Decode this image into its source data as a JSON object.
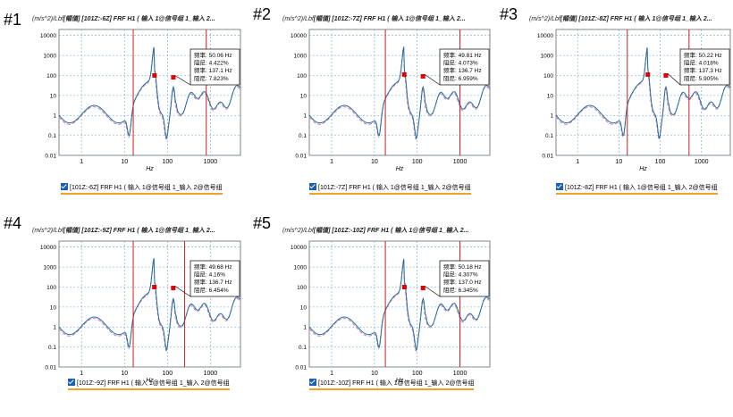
{
  "common": {
    "y_ticks": [
      "10000",
      "1000",
      "100",
      "10",
      "1",
      "0.1",
      "0.01"
    ],
    "x_ticks": [
      "1",
      "10",
      "100",
      "1000"
    ],
    "xlabel": "Hz",
    "colors": {
      "frf": "#1f6f9f",
      "fit": "#d080b0",
      "cursor": "#cc2020",
      "marker": "#e00000",
      "grid": "#66aacc",
      "legend_check": "#1a5fb4",
      "legend_underline": "#f0a030"
    }
  },
  "charts": [
    {
      "label": "#1",
      "title_units": "(m/s^2)/Lbf",
      "title_main": "[幅值] [101Z:-6Z] FRF H1 ( 输入 1@信号组 1_输入 2...",
      "legend": "[101Z:-6Z] FRF H1 ( 输入 1@信号组 1_输入 2@信号组",
      "info": [
        "频率: 50.06 Hz",
        "阻尼: 4.422%",
        "频率: 137.1 Hz",
        "阻尼: 7.823%"
      ],
      "chart_data": {
        "type": "line",
        "xscale": "log",
        "yscale": "log",
        "xlim": [
          0.3,
          5000
        ],
        "ylim": [
          0.01,
          20000
        ],
        "ylabel": "(m/s^2)/Lbf",
        "xlabel": "Hz",
        "cursors_x": [
          16,
          800
        ],
        "peaks": [
          {
            "x": 50.06,
            "y": 100
          },
          {
            "x": 137.1,
            "y": 80
          }
        ]
      }
    },
    {
      "label": "#2",
      "title_units": "(m/s^2)/Lbf",
      "title_main": "[幅值] [101Z:-7Z] FRF H1 ( 输入 1@信号组 1_输入 2...",
      "legend": "[101Z:-7Z] FRF H1 ( 输入 1@信号组 1_输入 2@信号组",
      "info": [
        "频率: 49.81 Hz",
        "阻尼: 4.073%",
        "频率: 136.7 Hz",
        "阻尼: 6.959%"
      ],
      "chart_data": {
        "type": "line",
        "xscale": "log",
        "yscale": "log",
        "xlim": [
          0.3,
          5000
        ],
        "ylim": [
          0.01,
          20000
        ],
        "ylabel": "(m/s^2)/Lbf",
        "xlabel": "Hz",
        "cursors_x": [
          18,
          1000
        ],
        "peaks": [
          {
            "x": 49.81,
            "y": 110
          },
          {
            "x": 136.7,
            "y": 90
          }
        ]
      }
    },
    {
      "label": "#3",
      "title_units": "(m/s^2)/Lbf",
      "title_main": "[幅值] [101Z:-8Z] FRF H1 ( 输入 1@信号组 1_输入 2...",
      "legend": "[101Z:-8Z] FRF H1 ( 输入 1@信号组 1_输入 2@信号组",
      "info": [
        "频率: 50.22 Hz",
        "阻尼: 4.018%",
        "频率: 137.3 Hz",
        "阻尼: 5.905%"
      ],
      "chart_data": {
        "type": "line",
        "xscale": "log",
        "yscale": "log",
        "xlim": [
          0.3,
          5000
        ],
        "ylim": [
          0.01,
          20000
        ],
        "ylabel": "(m/s^2)/Lbf",
        "xlabel": "Hz",
        "cursors_x": [
          16,
          500
        ],
        "peaks": [
          {
            "x": 50.22,
            "y": 110
          },
          {
            "x": 137.3,
            "y": 100
          }
        ]
      }
    },
    {
      "label": "#4",
      "title_units": "(m/s^2)/Lbf",
      "title_main": "[幅值] [101Z:-9Z] FRF H1 ( 输入 1@信号组 1_输入 2...",
      "legend": "[101Z:-9Z] FRF H1 ( 输入 1@信号组 1_输入 2@信号组",
      "info": [
        "频率: 49.68 Hz",
        "阻尼: 4.16%",
        "频率: 136.7 Hz",
        "阻尼: 6.454%"
      ],
      "chart_data": {
        "type": "line",
        "xscale": "log",
        "yscale": "log",
        "xlim": [
          0.3,
          5000
        ],
        "ylim": [
          0.01,
          20000
        ],
        "ylabel": "(m/s^2)/Lbf",
        "xlabel": "Hz",
        "cursors_x": [
          16,
          250
        ],
        "peaks": [
          {
            "x": 49.68,
            "y": 100
          },
          {
            "x": 136.7,
            "y": 90
          }
        ]
      }
    },
    {
      "label": "#5",
      "title_units": "(m/s^2)/Lbf",
      "title_main": "[幅值] [101Z:-10Z] FRF H1 ( 输入 1@信号组 1_输入 2...",
      "legend": "[101Z:-10Z] FRF H1 ( 输入 1@信号组 1_输入 2@信号组",
      "info": [
        "频率: 50.18 Hz",
        "阻尼: 4.307%",
        "频率: 137.0 Hz",
        "阻尼: 6.345%"
      ],
      "chart_data": {
        "type": "line",
        "xscale": "log",
        "yscale": "log",
        "xlim": [
          0.3,
          5000
        ],
        "ylim": [
          0.01,
          20000
        ],
        "ylabel": "(m/s^2)/Lbf",
        "xlabel": "Hz",
        "cursors_x": [
          18,
          1000
        ],
        "peaks": [
          {
            "x": 50.18,
            "y": 100
          },
          {
            "x": 137.0,
            "y": 90
          }
        ]
      }
    }
  ]
}
